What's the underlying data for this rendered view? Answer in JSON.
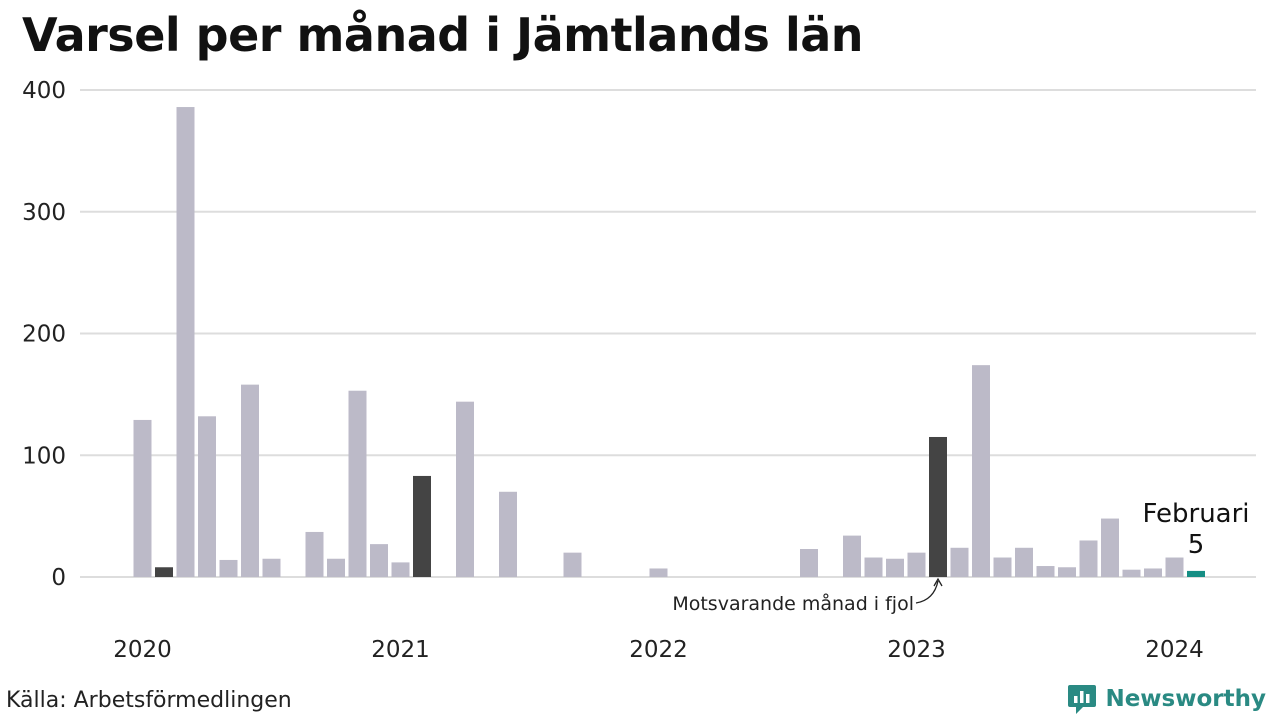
{
  "header": {
    "title": "Varsel per månad i Jämtlands län"
  },
  "footer": {
    "source": "Källa: Arbetsförmedlingen",
    "brand": "Newsworthy"
  },
  "colors": {
    "default": "#bcbac8",
    "comparison": "#444444",
    "highlight": "#168e84",
    "grid": "#dddddd",
    "brand": "#2a8a83"
  },
  "chart_data": {
    "type": "bar",
    "title": "Varsel per månad i Jämtlands län",
    "xlabel": "",
    "ylabel": "",
    "ylim": [
      0,
      400
    ],
    "yticks": [
      "0",
      "100",
      "200",
      "300",
      "400"
    ],
    "xticks": [
      "2020",
      "2021",
      "2022",
      "2023",
      "2024"
    ],
    "grid": true,
    "categories": [
      "2020-01",
      "2020-02",
      "2020-03",
      "2020-04",
      "2020-05",
      "2020-06",
      "2020-07",
      "2020-08",
      "2020-09",
      "2020-10",
      "2020-11",
      "2020-12",
      "2021-01",
      "2021-02",
      "2021-03",
      "2021-04",
      "2021-05",
      "2021-06",
      "2021-07",
      "2021-08",
      "2021-09",
      "2021-10",
      "2021-11",
      "2021-12",
      "2022-01",
      "2022-02",
      "2022-03",
      "2022-04",
      "2022-05",
      "2022-06",
      "2022-07",
      "2022-08",
      "2022-09",
      "2022-10",
      "2022-11",
      "2022-12",
      "2023-01",
      "2023-02",
      "2023-03",
      "2023-04",
      "2023-05",
      "2023-06",
      "2023-07",
      "2023-08",
      "2023-09",
      "2023-10",
      "2023-11",
      "2023-12",
      "2024-01",
      "2024-02"
    ],
    "values": [
      129,
      8,
      386,
      132,
      14,
      158,
      15,
      0,
      37,
      15,
      153,
      27,
      12,
      83,
      0,
      144,
      0,
      70,
      0,
      0,
      20,
      0,
      0,
      0,
      7,
      0,
      0,
      0,
      0,
      0,
      0,
      23,
      0,
      34,
      16,
      15,
      20,
      115,
      24,
      174,
      16,
      24,
      9,
      8,
      30,
      48,
      6,
      7,
      16,
      5
    ],
    "comparison_indices": [
      1,
      13,
      37
    ],
    "highlight_index": 49,
    "highlight_label": "Februari",
    "highlight_value_label": "5",
    "annotation": "Motsvarande månad i fjol"
  }
}
